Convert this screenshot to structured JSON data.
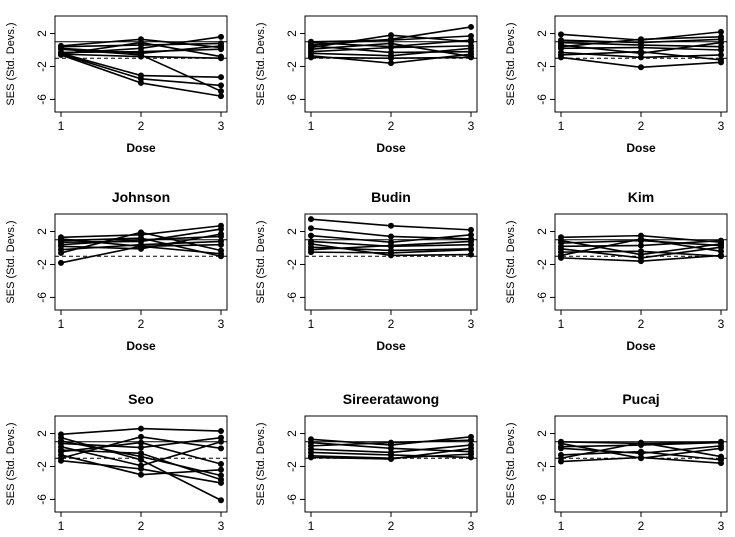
{
  "figure": {
    "panels": [
      {
        "title": "",
        "xlabel": "Dose",
        "ylabel": "SES (Std. Devs.)",
        "show_xlabel": true
      },
      {
        "title": "",
        "xlabel": "Dose",
        "ylabel": "SES (Std. Devs.)",
        "show_xlabel": true
      },
      {
        "title": "",
        "xlabel": "Dose",
        "ylabel": "SES (Std. Devs.)",
        "show_xlabel": true
      },
      {
        "title": "Johnson",
        "xlabel": "Dose",
        "ylabel": "SES (Std. Devs.)",
        "show_xlabel": true
      },
      {
        "title": "Budin",
        "xlabel": "Dose",
        "ylabel": "SES (Std. Devs.)",
        "show_xlabel": true
      },
      {
        "title": "Kim",
        "xlabel": "Dose",
        "ylabel": "SES (Std. Devs.)",
        "show_xlabel": true
      },
      {
        "title": "Seo",
        "xlabel": "",
        "ylabel": "SES (Std. Devs.)",
        "show_xlabel": false
      },
      {
        "title": "Sireeratawong",
        "xlabel": "",
        "ylabel": "SES (Std. Devs.)",
        "show_xlabel": false
      },
      {
        "title": "Pucaj",
        "xlabel": "",
        "ylabel": "SES (Std. Devs.)",
        "show_xlabel": false
      }
    ]
  },
  "chart_data": [
    {
      "type": "line",
      "title": "",
      "xlabel": "Dose",
      "ylabel": "SES (Std. Devs.)",
      "x": [
        1,
        2,
        3
      ],
      "xticks": [
        1,
        2,
        3
      ],
      "yticks": [
        2,
        -2,
        -6
      ],
      "ylim": [
        -6.8,
        3.4
      ],
      "reference_lines": [
        1,
        -1
      ],
      "series": [
        {
          "values": [
            -0.3,
            -0.2,
            0.1
          ]
        },
        {
          "values": [
            -0.4,
            0.2,
            1.6
          ]
        },
        {
          "values": [
            0.4,
            0.6,
            0.8
          ]
        },
        {
          "values": [
            0.2,
            -0.4,
            0.5
          ]
        },
        {
          "values": [
            -0.5,
            -3.5,
            -4.3
          ]
        },
        {
          "values": [
            -0.6,
            -4.0,
            -5.6
          ]
        },
        {
          "values": [
            -0.4,
            -3.1,
            -3.3
          ]
        },
        {
          "values": [
            -0.5,
            0.9,
            -0.8
          ]
        },
        {
          "values": [
            0.5,
            1.3,
            0.3
          ]
        },
        {
          "values": [
            -0.5,
            -0.8,
            -1.0
          ]
        },
        {
          "values": [
            0.1,
            -0.6,
            -5.0
          ]
        }
      ]
    },
    {
      "type": "line",
      "title": "",
      "xlabel": "Dose",
      "ylabel": "SES (Std. Devs.)",
      "x": [
        1,
        2,
        3
      ],
      "xticks": [
        1,
        2,
        3
      ],
      "yticks": [
        2,
        -2,
        -6
      ],
      "ylim": [
        -6.8,
        3.4
      ],
      "reference_lines": [
        1,
        -1
      ],
      "series": [
        {
          "values": [
            0.6,
            1.3,
            2.8
          ]
        },
        {
          "values": [
            0.3,
            1.8,
            1.0
          ]
        },
        {
          "values": [
            -0.7,
            -1.6,
            -0.5
          ]
        },
        {
          "values": [
            0.9,
            0.4,
            1.2
          ]
        },
        {
          "values": [
            -0.4,
            -0.7,
            0.2
          ]
        },
        {
          "values": [
            0.1,
            0.8,
            -0.8
          ]
        },
        {
          "values": [
            1.0,
            1.2,
            1.7
          ]
        },
        {
          "values": [
            -0.2,
            0.3,
            0.5
          ]
        },
        {
          "values": [
            0.5,
            -0.3,
            -0.2
          ]
        },
        {
          "values": [
            -0.9,
            -1.0,
            -0.9
          ]
        }
      ]
    },
    {
      "type": "line",
      "title": "",
      "xlabel": "Dose",
      "ylabel": "SES (Std. Devs.)",
      "x": [
        1,
        2,
        3
      ],
      "xticks": [
        1,
        2,
        3
      ],
      "yticks": [
        2,
        -2,
        -6
      ],
      "ylim": [
        -6.8,
        3.4
      ],
      "reference_lines": [
        1,
        -1
      ],
      "series": [
        {
          "values": [
            1.9,
            1.2,
            2.2
          ]
        },
        {
          "values": [
            1.2,
            0.9,
            1.3
          ]
        },
        {
          "values": [
            0.6,
            -0.4,
            0.9
          ]
        },
        {
          "values": [
            -0.9,
            -2.1,
            -1.5
          ]
        },
        {
          "values": [
            0.2,
            0.3,
            0.0
          ]
        },
        {
          "values": [
            -0.3,
            -0.9,
            -0.6
          ]
        },
        {
          "values": [
            0.9,
            0.6,
            0.4
          ]
        },
        {
          "values": [
            -0.6,
            -0.2,
            -1.2
          ]
        },
        {
          "values": [
            0.4,
            1.3,
            1.6
          ]
        }
      ]
    },
    {
      "type": "line",
      "title": "Johnson",
      "xlabel": "Dose",
      "ylabel": "SES (Std. Devs.)",
      "x": [
        1,
        2,
        3
      ],
      "xticks": [
        1,
        2,
        3
      ],
      "yticks": [
        2,
        -2,
        -6
      ],
      "ylim": [
        -6.8,
        3.4
      ],
      "reference_lines": [
        1,
        -1
      ],
      "series": [
        {
          "values": [
            1.3,
            1.6,
            2.7
          ]
        },
        {
          "values": [
            0.7,
            0.8,
            2.3
          ]
        },
        {
          "values": [
            -1.8,
            0.2,
            0.4
          ]
        },
        {
          "values": [
            -0.6,
            1.9,
            -0.3
          ]
        },
        {
          "values": [
            0.9,
            1.2,
            -1.0
          ]
        },
        {
          "values": [
            0.2,
            -0.1,
            1.7
          ]
        },
        {
          "values": [
            -0.2,
            0.4,
            0.8
          ]
        },
        {
          "values": [
            0.4,
            1.0,
            1.4
          ]
        },
        {
          "values": [
            1.1,
            0.2,
            -0.7
          ]
        }
      ]
    },
    {
      "type": "line",
      "title": "Budin",
      "xlabel": "Dose",
      "ylabel": "SES (Std. Devs.)",
      "x": [
        1,
        2,
        3
      ],
      "xticks": [
        1,
        2,
        3
      ],
      "yticks": [
        2,
        -2,
        -6
      ],
      "ylim": [
        -6.8,
        3.4
      ],
      "reference_lines": [
        1,
        -1
      ],
      "series": [
        {
          "values": [
            3.5,
            2.7,
            2.2
          ]
        },
        {
          "values": [
            2.4,
            1.4,
            1.1
          ]
        },
        {
          "values": [
            1.5,
            0.7,
            1.6
          ]
        },
        {
          "values": [
            0.8,
            0.2,
            0.4
          ]
        },
        {
          "values": [
            0.1,
            -0.3,
            -0.1
          ]
        },
        {
          "values": [
            -0.5,
            -0.6,
            -0.2
          ]
        },
        {
          "values": [
            -0.2,
            0.3,
            0.8
          ]
        },
        {
          "values": [
            0.5,
            -0.9,
            -0.8
          ]
        }
      ]
    },
    {
      "type": "line",
      "title": "Kim",
      "xlabel": "Dose",
      "ylabel": "SES (Std. Devs.)",
      "x": [
        1,
        2,
        3
      ],
      "xticks": [
        1,
        2,
        3
      ],
      "yticks": [
        2,
        -2,
        -6
      ],
      "ylim": [
        -6.8,
        3.4
      ],
      "reference_lines": [
        1,
        -1
      ],
      "series": [
        {
          "values": [
            1.3,
            1.5,
            0.7
          ]
        },
        {
          "values": [
            -1.2,
            -1.6,
            -0.9
          ]
        },
        {
          "values": [
            0.6,
            0.9,
            0.3
          ]
        },
        {
          "values": [
            -0.5,
            -0.4,
            -1.0
          ]
        },
        {
          "values": [
            0.9,
            -0.8,
            0.5
          ]
        },
        {
          "values": [
            -0.9,
            1.1,
            -0.4
          ]
        },
        {
          "values": [
            0.2,
            0.3,
            0.9
          ]
        },
        {
          "values": [
            -0.1,
            -1.2,
            0.1
          ]
        }
      ]
    },
    {
      "type": "line",
      "title": "Seo",
      "xlabel": "",
      "ylabel": "SES (Std. Devs.)",
      "x": [
        1,
        2,
        3
      ],
      "xticks": [
        1,
        2,
        3
      ],
      "yticks": [
        2,
        -2,
        -6
      ],
      "ylim": [
        -6.8,
        3.4
      ],
      "reference_lines": [
        1,
        -1
      ],
      "series": [
        {
          "values": [
            1.9,
            2.6,
            2.3
          ]
        },
        {
          "values": [
            1.5,
            -1.2,
            -6.1
          ]
        },
        {
          "values": [
            -1.3,
            -2.3,
            -4.0
          ]
        },
        {
          "values": [
            0.8,
            0.3,
            1.5
          ]
        },
        {
          "values": [
            -0.6,
            -3.0,
            -2.4
          ]
        },
        {
          "values": [
            1.1,
            -0.8,
            -3.1
          ]
        },
        {
          "values": [
            -1.0,
            1.6,
            0.2
          ]
        },
        {
          "values": [
            0.4,
            -1.9,
            1.0
          ]
        },
        {
          "values": [
            -0.2,
            0.9,
            -1.7
          ]
        },
        {
          "values": [
            0.0,
            -0.4,
            -3.6
          ]
        }
      ]
    },
    {
      "type": "line",
      "title": "Sireeratawong",
      "xlabel": "",
      "ylabel": "SES (Std. Devs.)",
      "x": [
        1,
        2,
        3
      ],
      "xticks": [
        1,
        2,
        3
      ],
      "yticks": [
        2,
        -2,
        -6
      ],
      "ylim": [
        -6.8,
        3.4
      ],
      "reference_lines": [
        1,
        -1
      ],
      "series": [
        {
          "values": [
            1.3,
            0.6,
            1.6
          ]
        },
        {
          "values": [
            -0.7,
            -1.0,
            -0.5
          ]
        },
        {
          "values": [
            0.5,
            0.9,
            1.2
          ]
        },
        {
          "values": [
            -0.3,
            -0.6,
            -0.9
          ]
        },
        {
          "values": [
            0.9,
            0.2,
            -0.2
          ]
        },
        {
          "values": [
            0.1,
            -0.3,
            0.6
          ]
        },
        {
          "values": [
            -0.9,
            -1.1,
            0.2
          ]
        }
      ]
    },
    {
      "type": "line",
      "title": "Pucaj",
      "xlabel": "",
      "ylabel": "SES (Std. Devs.)",
      "x": [
        1,
        2,
        3
      ],
      "xticks": [
        1,
        2,
        3
      ],
      "yticks": [
        2,
        -2,
        -6
      ],
      "ylim": [
        -6.8,
        3.4
      ],
      "reference_lines": [
        1,
        -1
      ],
      "series": [
        {
          "values": [
            1.0,
            0.8,
            1.0
          ]
        },
        {
          "values": [
            -1.4,
            -0.9,
            -1.6
          ]
        },
        {
          "values": [
            0.4,
            0.6,
            0.9
          ]
        },
        {
          "values": [
            -0.6,
            -0.2,
            -1.2
          ]
        },
        {
          "values": [
            0.8,
            -1.0,
            0.2
          ]
        },
        {
          "values": [
            -1.0,
            0.9,
            -0.8
          ]
        },
        {
          "values": [
            0.2,
            -0.4,
            0.5
          ]
        }
      ]
    }
  ]
}
